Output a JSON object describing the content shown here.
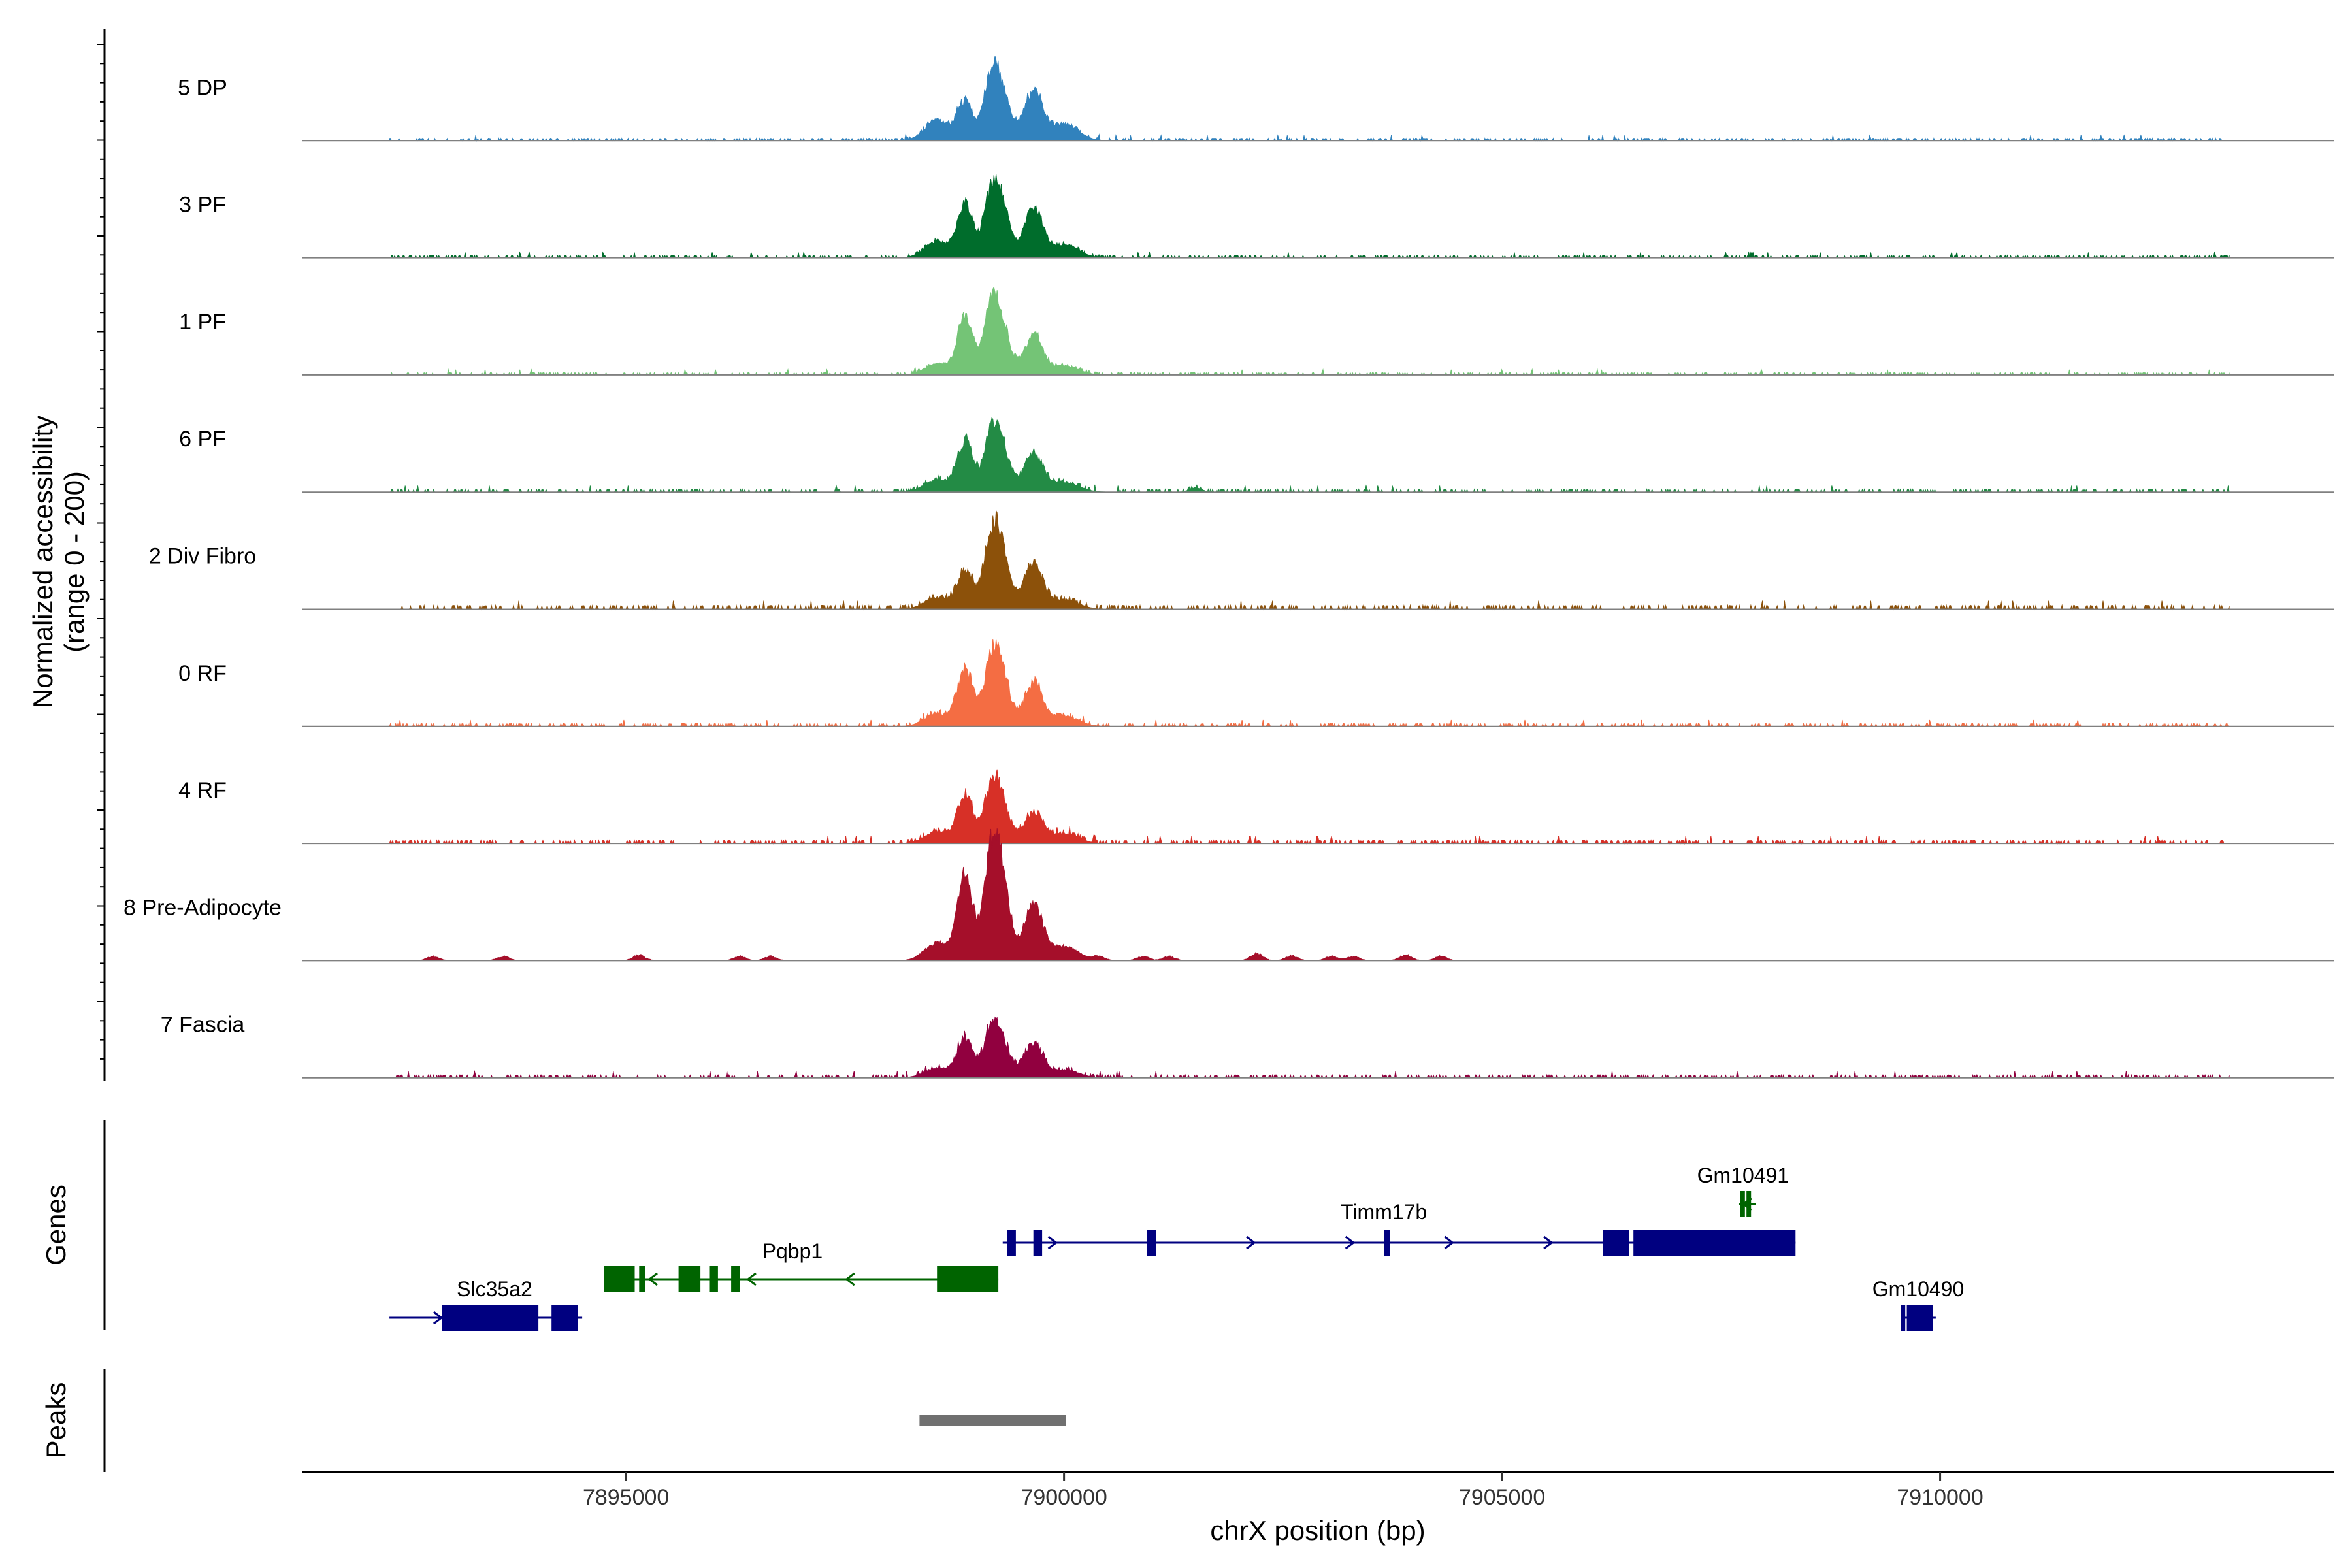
{
  "chart_data": {
    "type": "area",
    "title": "",
    "ylabel": "Normalized accessibility",
    "ylabel_range": "(range 0 - 200)",
    "xlabel": "chrX position (bp)",
    "xlim": [
      7891300,
      7914500
    ],
    "ylim": [
      0,
      200
    ],
    "x_ticks": [
      {
        "value": 7895000,
        "label": "7895000"
      },
      {
        "value": 7900000,
        "label": "7900000"
      },
      {
        "value": 7905000,
        "label": "7905000"
      },
      {
        "value": 7910000,
        "label": "7910000"
      }
    ],
    "panel_labels": {
      "genes": "Genes",
      "peaks": "Peaks"
    },
    "series": [
      {
        "name": "5 DP",
        "color": "#3182BD",
        "peak_heights": [
          55,
          85,
          68,
          52
        ],
        "background": 2.5,
        "bumps": []
      },
      {
        "name": "3 PF",
        "color": "#006D2C",
        "peak_heights": [
          75,
          85,
          68,
          40
        ],
        "background": 2.5,
        "bumps": []
      },
      {
        "name": "1 PF",
        "color": "#74C476",
        "peak_heights": [
          80,
          88,
          55,
          28
        ],
        "background": 2.5,
        "bumps": []
      },
      {
        "name": "6 PF",
        "color": "#238B45",
        "peak_heights": [
          70,
          78,
          55,
          32
        ],
        "background": 3,
        "bumps": [
          {
            "x": 7901500,
            "y": 6
          }
        ]
      },
      {
        "name": "2 Div Fibro",
        "color": "#8C510A",
        "peak_heights": [
          55,
          95,
          62,
          30
        ],
        "background": 4,
        "bumps": []
      },
      {
        "name": "0 RF",
        "color": "#F46D43",
        "peak_heights": [
          80,
          88,
          60,
          32
        ],
        "background": 3,
        "bumps": []
      },
      {
        "name": "4 RF",
        "color": "#D73027",
        "peak_heights": [
          70,
          72,
          42,
          30
        ],
        "background": 3.5,
        "bumps": []
      },
      {
        "name": "8 Pre-Adipocyte",
        "color": "#A50F2A",
        "peak_heights": [
          120,
          140,
          80,
          45
        ],
        "background": 0,
        "bumps": [
          {
            "x": 7892800,
            "y": 6
          },
          {
            "x": 7893600,
            "y": 6
          },
          {
            "x": 7895150,
            "y": 8
          },
          {
            "x": 7896300,
            "y": 6
          },
          {
            "x": 7896650,
            "y": 6
          },
          {
            "x": 7900400,
            "y": 6
          },
          {
            "x": 7900900,
            "y": 6
          },
          {
            "x": 7901200,
            "y": 6
          },
          {
            "x": 7902200,
            "y": 10
          },
          {
            "x": 7902600,
            "y": 7
          },
          {
            "x": 7903050,
            "y": 6
          },
          {
            "x": 7903300,
            "y": 6
          },
          {
            "x": 7903900,
            "y": 8
          },
          {
            "x": 7904300,
            "y": 6
          }
        ]
      },
      {
        "name": "7 Fascia",
        "color": "#91003F",
        "peak_heights": [
          55,
          65,
          48,
          25
        ],
        "background": 3,
        "bumps": []
      }
    ],
    "genes": [
      {
        "name": "Slc35a2",
        "start": 7892300,
        "end": 7894500,
        "strand": "+",
        "color": "#000080",
        "row": 2,
        "exons": [
          [
            7892900,
            7894000
          ],
          [
            7894150,
            7894450
          ]
        ],
        "label_x": 7893500
      },
      {
        "name": "Pqbp1",
        "start": 7894750,
        "end": 7899250,
        "strand": "-",
        "color": "#006400",
        "row": 1,
        "exons": [
          [
            7894750,
            7895100
          ],
          [
            7895150,
            7895220
          ],
          [
            7895600,
            7895850
          ],
          [
            7895950,
            7896050
          ],
          [
            7896200,
            7896300
          ],
          [
            7898550,
            7899250
          ]
        ],
        "label_x": 7896900
      },
      {
        "name": "Timm17b",
        "start": 7899300,
        "end": 7908350,
        "strand": "+",
        "color": "#000080",
        "row": 0,
        "exons": [
          [
            7899350,
            7899450
          ],
          [
            7899650,
            7899750
          ],
          [
            7900950,
            7901050
          ],
          [
            7903650,
            7903720
          ],
          [
            7906150,
            7906450
          ],
          [
            7906500,
            7908350
          ]
        ],
        "label_x": 7903650
      },
      {
        "name": "Gm10491",
        "start": 7907700,
        "end": 7907900,
        "strand": "-",
        "color": "#006400",
        "row": -1,
        "exons": [
          [
            7907720,
            7907760
          ],
          [
            7907790,
            7907830
          ]
        ],
        "label_x": 7907750
      },
      {
        "name": "Gm10490",
        "start": 7909550,
        "end": 7909950,
        "strand": "+",
        "color": "#000080",
        "row": 2,
        "exons": [
          [
            7909550,
            7909580
          ],
          [
            7909620,
            7909920
          ]
        ],
        "label_x": 7909750
      }
    ],
    "peaks": [
      {
        "start": 7898350,
        "end": 7900020,
        "color": "#707070"
      }
    ]
  }
}
